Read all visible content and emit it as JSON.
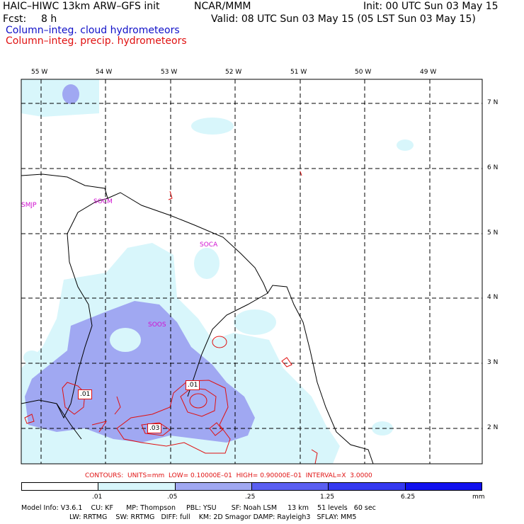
{
  "header": {
    "title": "HAIC–HIWC 13km ARW–GFS init",
    "center": "NCAR/MMM",
    "init": "Init: 00 UTC Sun 03 May 15",
    "fcst_label": "Fcst:",
    "fcst_value": "8 h",
    "valid": "Valid: 08 UTC Sun 03 May 15 (05 LST Sun 03 May 15)",
    "field1": "Column–integ. cloud hydrometeors",
    "field2": "Column–integ. precip. hydrometeors",
    "field1_color": "#1010c8",
    "field2_color": "#e01010"
  },
  "map": {
    "lon_labels": [
      "55 W",
      "54 W",
      "53 W",
      "52 W",
      "51 W",
      "50 W",
      "49 W"
    ],
    "lat_labels": [
      "7 N",
      "6 N",
      "5 N",
      "4 N",
      "3 N",
      "2 N"
    ],
    "stations": [
      "SMJP",
      "SOCM",
      "SOCA",
      "SOOS"
    ],
    "station_color": "#d010d0",
    "contour_labels": [
      ".01",
      ".01",
      ".03"
    ]
  },
  "contours_line": "CONTOURS:  UNITS=mm  LOW= 0.10000E–01  HIGH= 0.90000E–01  INTERVAL=X  3.0000",
  "colorbar": {
    "ticks": [
      ".01",
      ".05",
      ".25",
      "1.25",
      "6.25"
    ],
    "unit": "mm",
    "colors": [
      "#ffffff",
      "#d8f6fb",
      "#a0a8f2",
      "#5a5ef2",
      "#1010ee"
    ]
  },
  "footer": {
    "line1": "Model Info: V3.6.1    CU: KF      MP: Thompson     PBL: YSU       SF: Noah LSM     13 km    51 levels   60 sec",
    "line2": "LW: RRTMG    SW: RRTMG   DIFF: full    KM: 2D Smagor DAMP: Rayleigh3   SFLAY: MM5"
  }
}
